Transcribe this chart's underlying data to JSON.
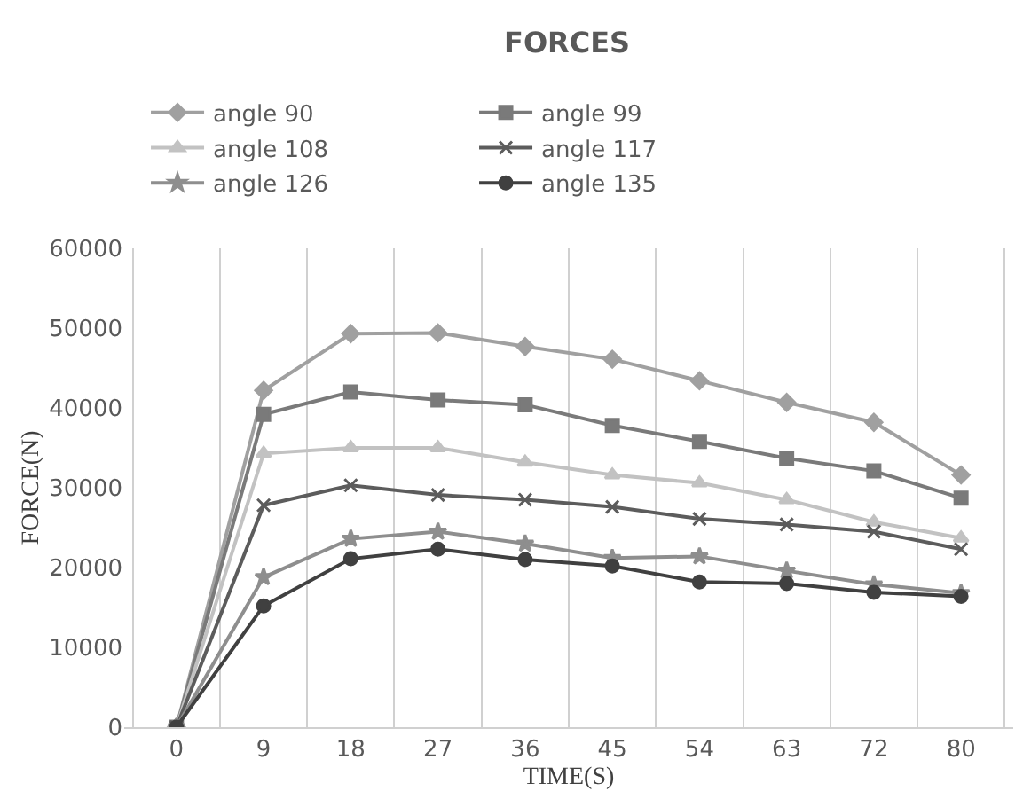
{
  "chart_data": {
    "type": "line",
    "title": "FORCES",
    "xlabel": "TIME(S)",
    "ylabel": "FORCE(N)",
    "categories": [
      "0",
      "9",
      "18",
      "27",
      "36",
      "45",
      "54",
      "63",
      "72",
      "80"
    ],
    "ylim": [
      0,
      60000
    ],
    "yticks": [
      0,
      10000,
      20000,
      30000,
      40000,
      50000,
      60000
    ],
    "grid": "x",
    "legend": "top",
    "series": [
      {
        "name": "angle 90",
        "color": "#a0a0a0",
        "marker": "diamond",
        "values": [
          0,
          42200,
          49300,
          49400,
          47700,
          46100,
          43400,
          40700,
          38200,
          31600
        ]
      },
      {
        "name": "angle 99",
        "color": "#7a7a7a",
        "marker": "square",
        "values": [
          0,
          39200,
          42000,
          41000,
          40400,
          37800,
          35800,
          33700,
          32100,
          28700
        ]
      },
      {
        "name": "angle 108",
        "color": "#c2c2c2",
        "marker": "triangle",
        "values": [
          0,
          34300,
          35000,
          35000,
          33200,
          31600,
          30600,
          28500,
          25700,
          23700
        ]
      },
      {
        "name": "angle 117",
        "color": "#5c5c5c",
        "marker": "cross",
        "values": [
          0,
          27800,
          30300,
          29100,
          28500,
          27600,
          26100,
          25400,
          24500,
          22300
        ]
      },
      {
        "name": "angle 126",
        "color": "#8e8e8e",
        "marker": "star",
        "values": [
          0,
          18800,
          23600,
          24500,
          23000,
          21200,
          21400,
          19600,
          17900,
          16800
        ]
      },
      {
        "name": "angle 135",
        "color": "#404040",
        "marker": "circle",
        "values": [
          0,
          15200,
          21100,
          22300,
          21000,
          20200,
          18200,
          18000,
          16900,
          16400
        ]
      }
    ]
  }
}
